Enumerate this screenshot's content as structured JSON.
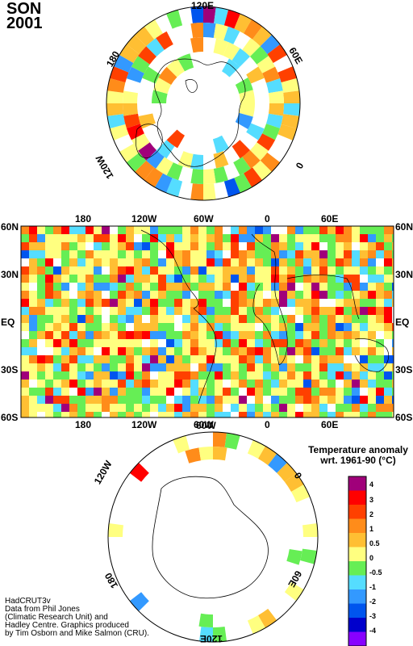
{
  "header": {
    "season": "SON",
    "year": "2001"
  },
  "north_polar": {
    "labels": {
      "top": "120E",
      "left": "180",
      "right": "60E",
      "lower_left": "120W",
      "lower_right": "0"
    }
  },
  "world_map": {
    "top_lon": [
      "180",
      "120W",
      "60W",
      "0",
      "60E"
    ],
    "bottom_lon": [
      "180",
      "120W",
      "60W",
      "0",
      "60E"
    ],
    "left_lat": [
      "60N",
      "30N",
      "EQ",
      "30S",
      "60S"
    ],
    "right_lat": [
      "60N",
      "30N",
      "EQ",
      "30S",
      "60S"
    ]
  },
  "south_polar": {
    "labels": {
      "upper_left": "120W",
      "right_top": "0",
      "top": "60W",
      "left_bottom": "180",
      "right_bottom": "60E",
      "bottom": "120E"
    }
  },
  "legend": {
    "title_line1": "Temperature anomaly",
    "title_line2": "wrt. 1961-90  (°C)",
    "labels": [
      "4",
      "3",
      "2",
      "1",
      "0.5",
      "0",
      "-0.5",
      "-1",
      "-2",
      "-3",
      "-4"
    ],
    "colors": [
      "#a0007a",
      "#ff0000",
      "#ff4000",
      "#ff8c1a",
      "#ffbf33",
      "#ffff80",
      "#66ee55",
      "#55ddff",
      "#3399ff",
      "#0055ee",
      "#0000cc",
      "#8800ff"
    ]
  },
  "credits": {
    "line1": "HadCRUT3v",
    "line2": "Data from Phil Jones",
    "line3": "(Climatic Research Unit) and",
    "line4": "Hadley Centre.  Graphics produced",
    "line5": "by Tim Osborn and Mike Salmon (CRU)."
  }
}
